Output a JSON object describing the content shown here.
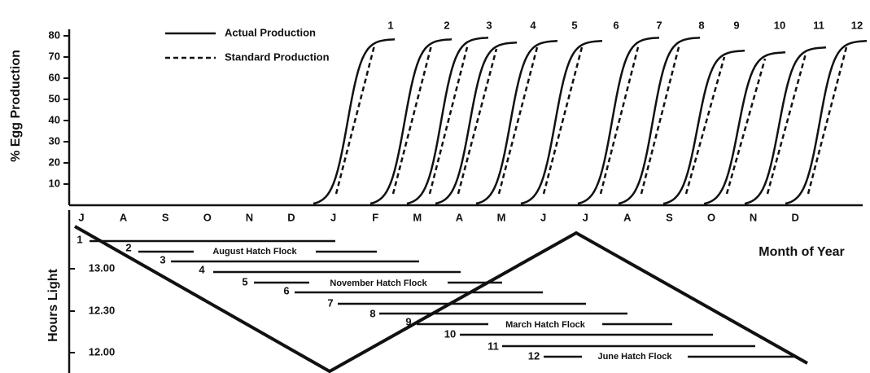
{
  "egg_axis": {
    "label": "% Egg Production",
    "ticks": [
      80,
      70,
      60,
      50,
      40,
      30,
      20,
      10
    ]
  },
  "curve_labels": [
    "1",
    "2",
    "3",
    "4",
    "5",
    "6",
    "7",
    "8",
    "9",
    "10",
    "11",
    "12"
  ],
  "legend": [
    "Actual Production",
    "Standard Production"
  ],
  "months": [
    "J",
    "A",
    "S",
    "O",
    "N",
    "D",
    "J",
    "F",
    "M",
    "A",
    "M",
    "J",
    "J",
    "A",
    "S",
    "O",
    "N",
    "D"
  ],
  "x_axis_label": "Month of Year",
  "hours_axis": {
    "label": "Hours Light",
    "ticks": [
      "13.00",
      "12.30",
      "12.00"
    ]
  },
  "flocks": [
    "1",
    "2",
    "3",
    "4",
    "5",
    "6",
    "7",
    "8",
    "9",
    "10",
    "11",
    "12"
  ],
  "hatch_labels": [
    "August Hatch Flock",
    "November Hatch Flock",
    "March Hatch Flock",
    "June Hatch Flock"
  ]
}
